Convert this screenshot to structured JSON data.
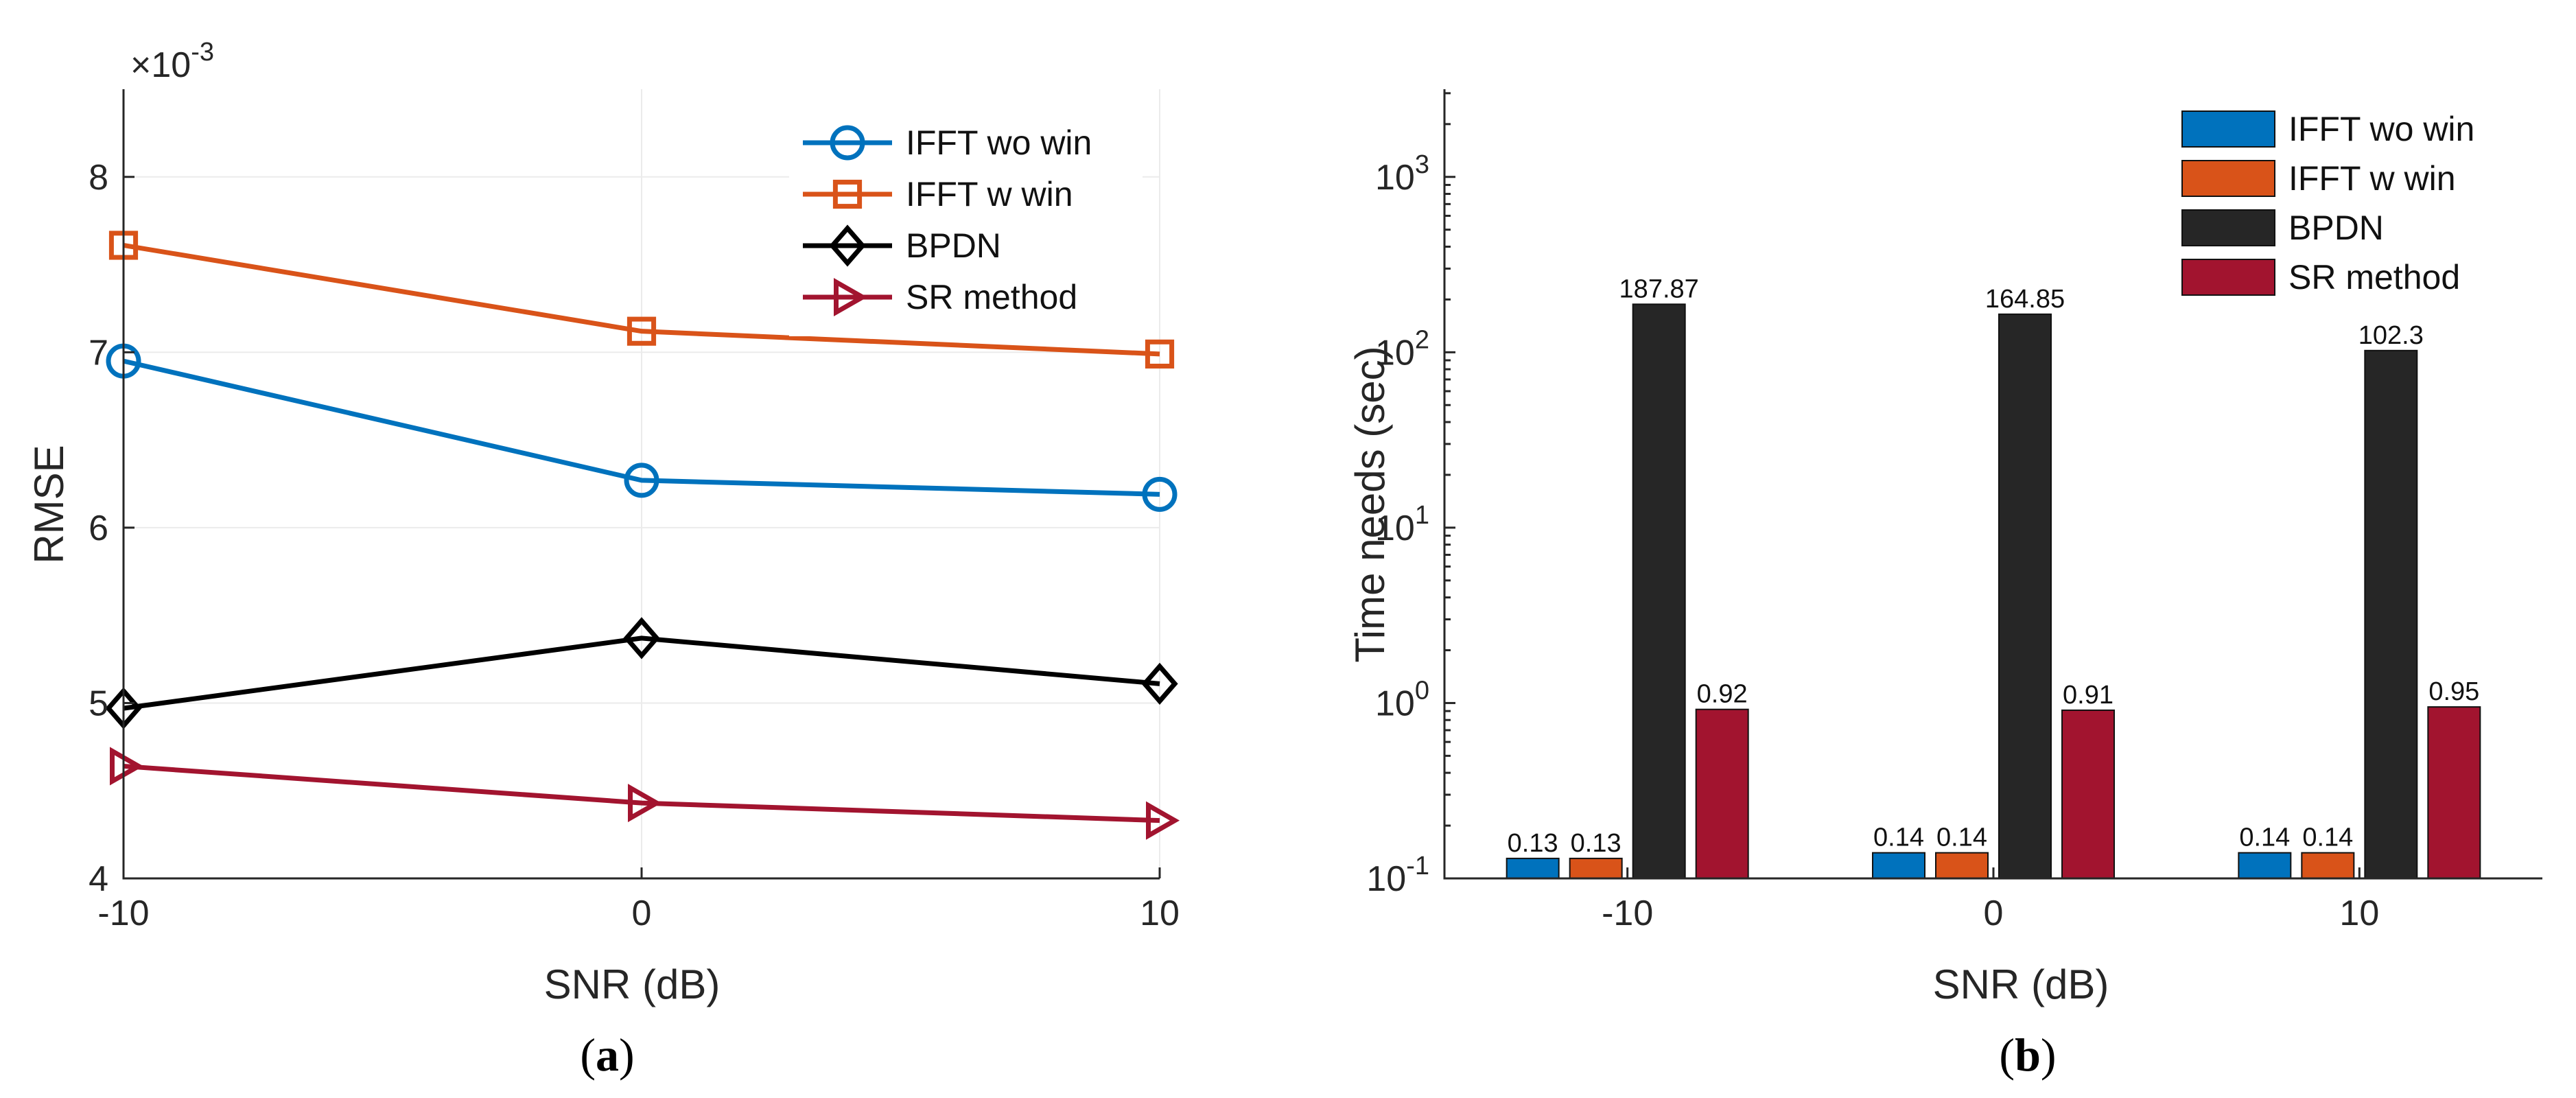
{
  "chart_data": [
    {
      "type": "line",
      "panel": "a",
      "caption": "a",
      "xlabel": "SNR (dB)",
      "ylabel": "RMSE",
      "exponent_prefix": "×10",
      "exponent_power": "-3",
      "x": [
        -10,
        0,
        10
      ],
      "xlim": [
        -10,
        10
      ],
      "ylim": [
        4,
        8.5
      ],
      "xticks": [
        -10,
        0,
        10
      ],
      "yticks": [
        4,
        5,
        6,
        7,
        8
      ],
      "grid": true,
      "legend_location": "top-right",
      "series": [
        {
          "name": "IFFT wo win",
          "values": [
            6.95,
            6.27,
            6.19
          ],
          "color": "#0072bd",
          "marker": "circle"
        },
        {
          "name": "IFFT w win",
          "values": [
            7.61,
            7.12,
            6.99
          ],
          "color": "#d95319",
          "marker": "square"
        },
        {
          "name": "BPDN",
          "values": [
            4.97,
            5.37,
            5.11
          ],
          "color": "#000000",
          "marker": "diamond"
        },
        {
          "name": "SR method",
          "values": [
            4.64,
            4.43,
            4.33
          ],
          "color": "#a2142f",
          "marker": "triangle-right"
        }
      ]
    },
    {
      "type": "bar",
      "panel": "b",
      "caption": "b",
      "xlabel": "SNR (dB)",
      "ylabel": "Time needs (sec)",
      "yscale": "log",
      "categories": [
        "-10",
        "0",
        "10"
      ],
      "ylim": [
        0.1,
        3162
      ],
      "yticks": [
        {
          "value": 0.1,
          "base": "10",
          "exp": "-1"
        },
        {
          "value": 1,
          "base": "10",
          "exp": "0"
        },
        {
          "value": 10,
          "base": "10",
          "exp": "1"
        },
        {
          "value": 100,
          "base": "10",
          "exp": "2"
        },
        {
          "value": 1000,
          "base": "10",
          "exp": "3"
        }
      ],
      "legend_location": "top-right",
      "series": [
        {
          "name": "IFFT wo win",
          "values": [
            0.13,
            0.14,
            0.14
          ],
          "labels": [
            "0.13",
            "0.14",
            "0.14"
          ],
          "color": "#0072bd"
        },
        {
          "name": "IFFT w win",
          "values": [
            0.13,
            0.14,
            0.14
          ],
          "labels": [
            "0.13",
            "0.14",
            "0.14"
          ],
          "color": "#d95319"
        },
        {
          "name": "BPDN",
          "values": [
            187.87,
            164.85,
            102.3
          ],
          "labels": [
            "187.87",
            "164.85",
            "102.3"
          ],
          "color": "#262626"
        },
        {
          "name": "SR method",
          "values": [
            0.92,
            0.91,
            0.95
          ],
          "labels": [
            "0.92",
            "0.91",
            "0.95"
          ],
          "color": "#a2142f"
        }
      ]
    }
  ]
}
